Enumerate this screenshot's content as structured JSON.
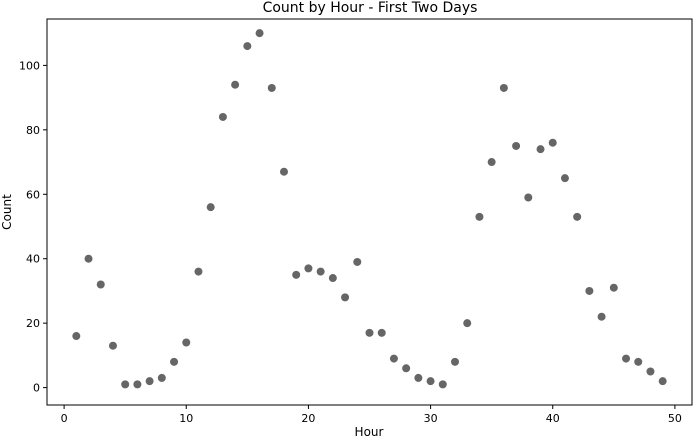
{
  "chart_data": {
    "type": "scatter",
    "title": "Count by Hour - First Two Days",
    "xlabel": "Hour",
    "ylabel": "Count",
    "xlim": [
      -1.4,
      51.4
    ],
    "ylim": [
      -5.4,
      114.4
    ],
    "xticks": [
      0,
      10,
      20,
      30,
      40,
      50
    ],
    "yticks": [
      0,
      20,
      40,
      60,
      80,
      100
    ],
    "grid": false,
    "marker_color": "#666666",
    "x": [
      1,
      2,
      3,
      4,
      5,
      6,
      7,
      8,
      9,
      10,
      11,
      12,
      13,
      14,
      15,
      16,
      17,
      18,
      19,
      20,
      21,
      22,
      23,
      24,
      25,
      26,
      27,
      28,
      29,
      30,
      31,
      32,
      33,
      34,
      35,
      36,
      37,
      38,
      39,
      40,
      41,
      42,
      43,
      44,
      45,
      46,
      47,
      48,
      49
    ],
    "y": [
      16,
      40,
      32,
      13,
      1,
      1,
      2,
      3,
      8,
      14,
      36,
      56,
      84,
      94,
      106,
      110,
      93,
      67,
      35,
      37,
      36,
      34,
      28,
      39,
      17,
      17,
      9,
      6,
      3,
      2,
      1,
      8,
      20,
      53,
      70,
      93,
      75,
      59,
      74,
      76,
      65,
      53,
      30,
      22,
      31,
      9,
      8,
      5,
      2
    ]
  }
}
